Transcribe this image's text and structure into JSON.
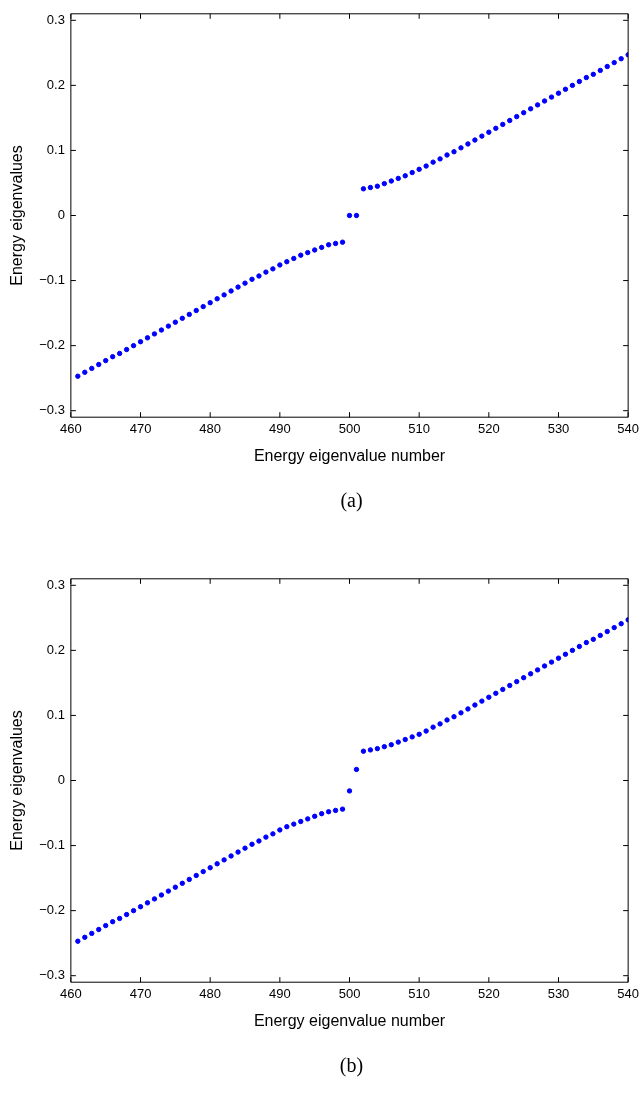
{
  "chart_data": [
    {
      "type": "scatter",
      "xlabel": "Energy eigenvalue number",
      "ylabel": "Energy eigenvalues",
      "annotations": [
        "(a)"
      ],
      "marker": "circle",
      "xlim": [
        460,
        540
      ],
      "xticks": [
        460,
        470,
        480,
        490,
        500,
        510,
        520,
        530,
        540
      ],
      "ylim": [
        -0.31,
        0.31
      ],
      "yticks": [
        {
          "value": -0.3,
          "label": "−0.3"
        },
        {
          "value": -0.2,
          "label": "−0.2"
        },
        {
          "value": -0.1,
          "label": "−0.1"
        },
        0,
        0.1,
        0.2,
        0.3
      ],
      "x": [
        461,
        462,
        463,
        464,
        465,
        466,
        467,
        468,
        469,
        470,
        471,
        472,
        473,
        474,
        475,
        476,
        477,
        478,
        479,
        480,
        481,
        482,
        483,
        484,
        485,
        486,
        487,
        488,
        489,
        490,
        491,
        492,
        493,
        494,
        495,
        496,
        497,
        498,
        499,
        500,
        501,
        502,
        503,
        504,
        505,
        506,
        507,
        508,
        509,
        510,
        511,
        512,
        513,
        514,
        515,
        516,
        517,
        518,
        519,
        520,
        521,
        522,
        523,
        524,
        525,
        526,
        527,
        528,
        529,
        530,
        531,
        532,
        533,
        534,
        535,
        536,
        537,
        538,
        539,
        540
      ],
      "series": [
        {
          "color": "#0000ff",
          "values": [
            -0.247,
            -0.241,
            -0.235,
            -0.229,
            -0.223,
            -0.217,
            -0.212,
            -0.206,
            -0.2,
            -0.194,
            -0.188,
            -0.182,
            -0.176,
            -0.17,
            -0.164,
            -0.158,
            -0.152,
            -0.146,
            -0.14,
            -0.134,
            -0.128,
            -0.122,
            -0.116,
            -0.11,
            -0.104,
            -0.098,
            -0.093,
            -0.087,
            -0.082,
            -0.076,
            -0.071,
            -0.066,
            -0.061,
            -0.057,
            -0.053,
            -0.049,
            -0.045,
            -0.043,
            -0.041,
            0,
            0,
            0.041,
            0.043,
            0.045,
            0.049,
            0.053,
            0.057,
            0.061,
            0.066,
            0.071,
            0.076,
            0.082,
            0.087,
            0.093,
            0.098,
            0.104,
            0.11,
            0.116,
            0.122,
            0.128,
            0.134,
            0.14,
            0.146,
            0.152,
            0.158,
            0.164,
            0.17,
            0.176,
            0.182,
            0.188,
            0.194,
            0.2,
            0.206,
            0.212,
            0.217,
            0.223,
            0.229,
            0.235,
            0.241,
            0.247
          ]
        }
      ]
    },
    {
      "type": "scatter",
      "xlabel": "Energy eigenvalue number",
      "ylabel": "Energy eigenvalues",
      "annotations": [
        "(b)"
      ],
      "marker": "circle",
      "xlim": [
        460,
        540
      ],
      "xticks": [
        460,
        470,
        480,
        490,
        500,
        510,
        520,
        530,
        540
      ],
      "ylim": [
        -0.31,
        0.31
      ],
      "yticks": [
        {
          "value": -0.3,
          "label": "−0.3"
        },
        {
          "value": -0.2,
          "label": "−0.2"
        },
        {
          "value": -0.1,
          "label": "−0.1"
        },
        0,
        0.1,
        0.2,
        0.3
      ],
      "x": [
        461,
        462,
        463,
        464,
        465,
        466,
        467,
        468,
        469,
        470,
        471,
        472,
        473,
        474,
        475,
        476,
        477,
        478,
        479,
        480,
        481,
        482,
        483,
        484,
        485,
        486,
        487,
        488,
        489,
        490,
        491,
        492,
        493,
        494,
        495,
        496,
        497,
        498,
        499,
        500,
        501,
        502,
        503,
        504,
        505,
        506,
        507,
        508,
        509,
        510,
        511,
        512,
        513,
        514,
        515,
        516,
        517,
        518,
        519,
        520,
        521,
        522,
        523,
        524,
        525,
        526,
        527,
        528,
        529,
        530,
        531,
        532,
        533,
        534,
        535,
        536,
        537,
        538,
        539,
        540
      ],
      "series": [
        {
          "color": "#0000ff",
          "values": [
            -0.247,
            -0.241,
            -0.235,
            -0.229,
            -0.223,
            -0.217,
            -0.212,
            -0.206,
            -0.2,
            -0.194,
            -0.188,
            -0.182,
            -0.176,
            -0.17,
            -0.164,
            -0.158,
            -0.152,
            -0.146,
            -0.14,
            -0.134,
            -0.128,
            -0.122,
            -0.116,
            -0.11,
            -0.104,
            -0.098,
            -0.093,
            -0.087,
            -0.082,
            -0.076,
            -0.071,
            -0.067,
            -0.063,
            -0.059,
            -0.055,
            -0.051,
            -0.048,
            -0.046,
            -0.044,
            -0.016,
            0.017,
            0.045,
            0.047,
            0.049,
            0.052,
            0.055,
            0.059,
            0.063,
            0.067,
            0.071,
            0.076,
            0.082,
            0.087,
            0.093,
            0.098,
            0.104,
            0.11,
            0.116,
            0.122,
            0.128,
            0.134,
            0.14,
            0.146,
            0.152,
            0.158,
            0.164,
            0.17,
            0.176,
            0.182,
            0.188,
            0.194,
            0.2,
            0.206,
            0.212,
            0.217,
            0.223,
            0.229,
            0.235,
            0.241,
            0.247
          ]
        }
      ]
    }
  ]
}
